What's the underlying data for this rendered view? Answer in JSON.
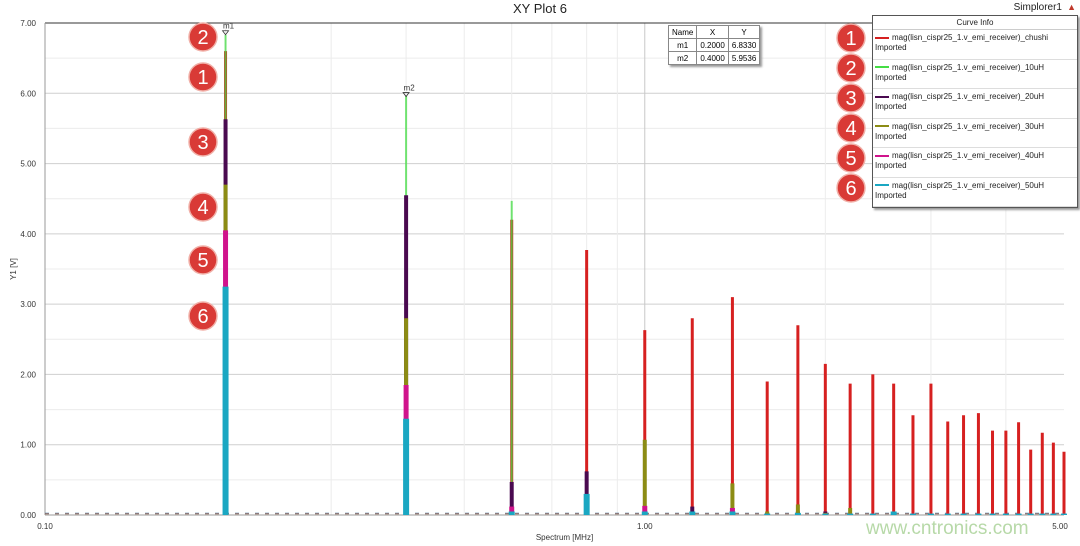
{
  "header": {
    "title": "XY Plot 6",
    "design_name": "Simplorer1",
    "collapse_icon": "triangle-up-icon"
  },
  "marker_table": {
    "headers": [
      "Name",
      "X",
      "Y"
    ],
    "rows": [
      [
        "m1",
        "0.2000",
        "6.8330"
      ],
      [
        "m2",
        "0.4000",
        "5.9536"
      ]
    ]
  },
  "legend": {
    "title": "Curve Info",
    "items": [
      {
        "name": "mag(lisn_cispr25_1.v_emi_receiver)_chushi",
        "sub": "Imported",
        "color": "#d62020",
        "badge": "1"
      },
      {
        "name": "mag(lisn_cispr25_1.v_emi_receiver)_10uH",
        "sub": "Imported",
        "color": "#44dd44",
        "badge": "2"
      },
      {
        "name": "mag(lisn_cispr25_1.v_emi_receiver)_20uH",
        "sub": "Imported",
        "color": "#4a0a50",
        "badge": "3"
      },
      {
        "name": "mag(lisn_cispr25_1.v_emi_receiver)_30uH",
        "sub": "Imported",
        "color": "#8c8c14",
        "badge": "4"
      },
      {
        "name": "mag(lisn_cispr25_1.v_emi_receiver)_40uH",
        "sub": "Imported",
        "color": "#d0138c",
        "badge": "5"
      },
      {
        "name": "mag(lisn_cispr25_1.v_emi_receiver)_50uH",
        "sub": "Imported",
        "color": "#1aa7c2",
        "badge": "6"
      }
    ]
  },
  "annotations": [
    "2",
    "1",
    "3",
    "4",
    "5",
    "6"
  ],
  "watermark": "www.cntronics.com",
  "chart_data": {
    "type": "bar",
    "title": "XY Plot 6",
    "xlabel": "Spectrum [MHz]",
    "ylabel": "Y1 [V]",
    "xscale": "log",
    "xlim": [
      0.1,
      5.0
    ],
    "ylim": [
      0,
      7
    ],
    "xticks": [
      "0.10",
      "1.00",
      "5.00"
    ],
    "yticks": [
      "0.00",
      "1.00",
      "2.00",
      "3.00",
      "4.00",
      "5.00",
      "6.00",
      "7.00"
    ],
    "grid": true,
    "legend_placement": "top-right",
    "x": [
      0.2,
      0.4,
      0.6,
      0.8,
      1.0,
      1.2,
      1.4,
      1.6,
      1.8,
      2.0,
      2.2,
      2.4,
      2.6,
      2.8,
      3.0,
      3.2,
      3.4,
      3.6,
      3.8,
      4.0,
      4.2,
      4.4,
      4.6,
      4.8,
      5.0
    ],
    "series": [
      {
        "name": "mag(lisn_cispr25_1.v_emi_receiver)_chushi",
        "color": "#d62020",
        "values": [
          6.6,
          0.02,
          4.2,
          3.77,
          2.63,
          2.8,
          3.1,
          1.9,
          2.7,
          2.15,
          1.87,
          2.0,
          1.87,
          1.42,
          1.87,
          1.33,
          1.42,
          1.45,
          1.2,
          1.2,
          1.32,
          0.93,
          1.17,
          1.03,
          0.9
        ]
      },
      {
        "name": "mag(lisn_cispr25_1.v_emi_receiver)_10uH",
        "color": "#44dd44",
        "values": [
          6.83,
          5.96,
          4.47,
          0.02,
          0.02,
          0.02,
          0.02,
          0.02,
          0.02,
          0.02,
          0.02,
          0.02,
          0.02,
          0.02,
          0.02,
          0.02,
          0.02,
          0.02,
          0.02,
          0.02,
          0.02,
          0.02,
          0.02,
          0.02,
          0.02
        ]
      },
      {
        "name": "mag(lisn_cispr25_1.v_emi_receiver)_20uH",
        "color": "#4a0a50",
        "values": [
          5.63,
          4.55,
          0.47,
          0.62,
          0.05,
          0.12,
          0.08,
          0.03,
          0.05,
          0.05,
          0.02,
          0.02,
          0.02,
          0.02,
          0.02,
          0.02,
          0.02,
          0.02,
          0.02,
          0.02,
          0.02,
          0.02,
          0.02,
          0.02,
          0.02
        ]
      },
      {
        "name": "mag(lisn_cispr25_1.v_emi_receiver)_30uH",
        "color": "#8c8c14",
        "values": [
          4.7,
          2.8,
          0.1,
          0.05,
          1.07,
          0.05,
          0.45,
          0.05,
          0.15,
          0.03,
          0.1,
          0.02,
          0.02,
          0.02,
          0.02,
          0.02,
          0.02,
          0.02,
          0.02,
          0.02,
          0.02,
          0.02,
          0.02,
          0.02,
          0.02
        ]
      },
      {
        "name": "mag(lisn_cispr25_1.v_emi_receiver)_40uH",
        "color": "#d0138c",
        "values": [
          4.05,
          1.85,
          0.12,
          0.05,
          0.13,
          0.03,
          0.1,
          0.02,
          0.02,
          0.02,
          0.02,
          0.02,
          0.02,
          0.02,
          0.02,
          0.02,
          0.02,
          0.02,
          0.02,
          0.02,
          0.02,
          0.02,
          0.02,
          0.02,
          0.02
        ]
      },
      {
        "name": "mag(lisn_cispr25_1.v_emi_receiver)_50uH",
        "color": "#1aa7c2",
        "values": [
          3.25,
          1.37,
          0.05,
          0.3,
          0.05,
          0.05,
          0.05,
          0.02,
          0.03,
          0.02,
          0.02,
          0.02,
          0.05,
          0.02,
          0.02,
          0.02,
          0.02,
          0.02,
          0.02,
          0.02,
          0.02,
          0.02,
          0.02,
          0.02,
          0.02
        ]
      }
    ],
    "markers": [
      {
        "name": "m1",
        "x": 0.2,
        "y": 6.833
      },
      {
        "name": "m2",
        "x": 0.4,
        "y": 5.9536
      }
    ]
  }
}
